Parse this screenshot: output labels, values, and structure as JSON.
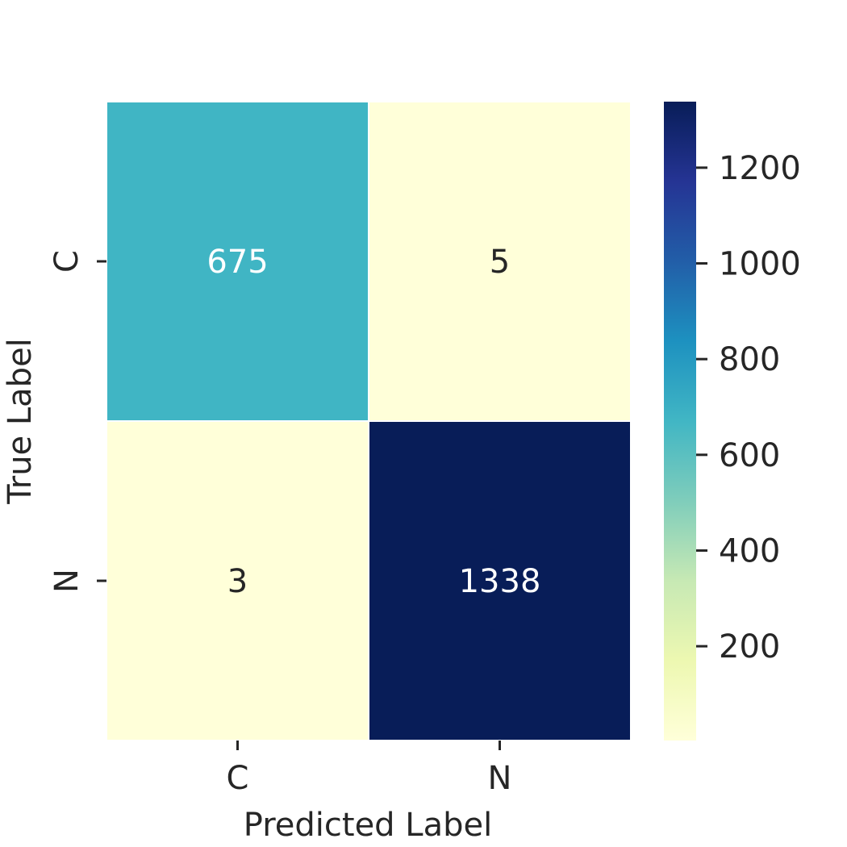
{
  "chart_data": {
    "type": "heatmap",
    "title": "",
    "xlabel": "Predicted Label",
    "ylabel": "True Label",
    "x_categories": [
      "C",
      "N"
    ],
    "y_categories": [
      "C",
      "N"
    ],
    "matrix": [
      [
        675,
        5
      ],
      [
        3,
        1338
      ]
    ],
    "annotations": [
      [
        "675",
        "5"
      ],
      [
        "3",
        "1338"
      ]
    ],
    "colormap": "YlGnBu",
    "colormap_stops": [
      "#ffffd9",
      "#edf8b1",
      "#c7e9b4",
      "#7fcdbb",
      "#41b6c4",
      "#1d91c0",
      "#225ea8",
      "#253494",
      "#081d58"
    ],
    "value_range": [
      3,
      1338
    ],
    "colorbar": {
      "ticks": [
        200,
        400,
        600,
        800,
        1000,
        1200
      ],
      "tick_labels": [
        "200",
        "400",
        "600",
        "800",
        "1000",
        "1200"
      ],
      "placement": "right"
    },
    "grid": false
  }
}
